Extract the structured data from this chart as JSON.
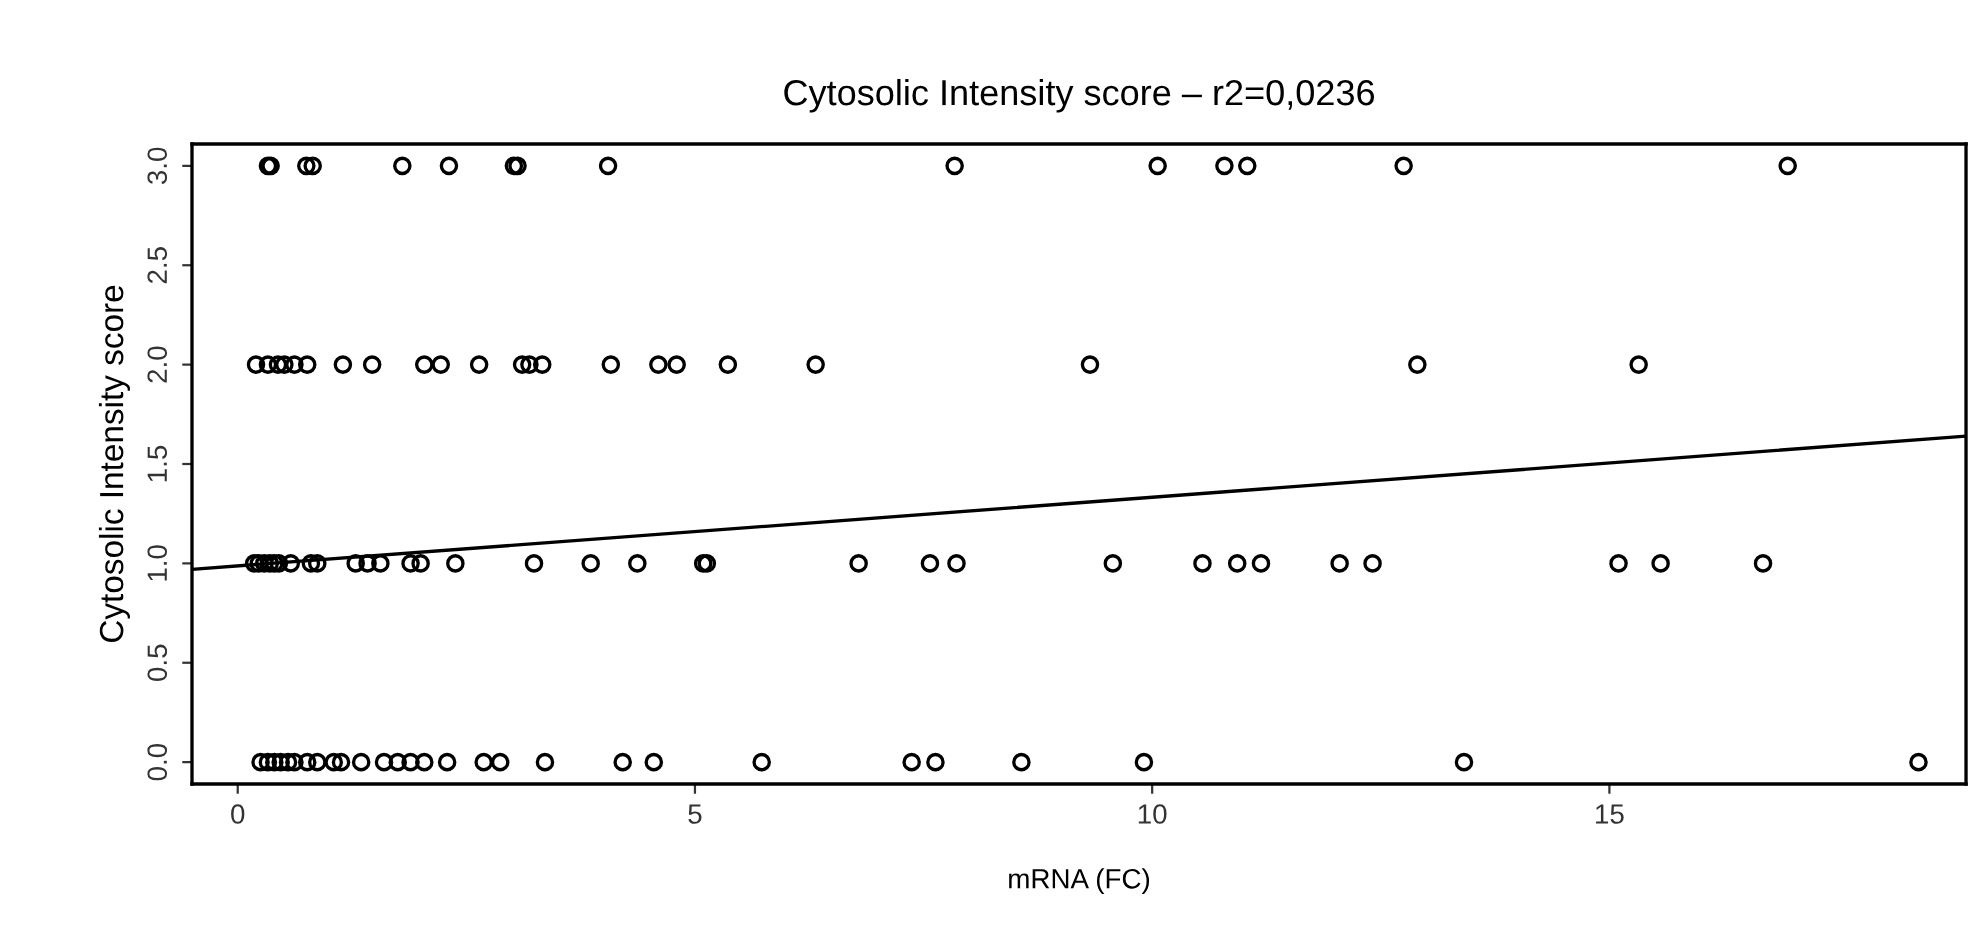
{
  "chart_data": {
    "type": "scatter",
    "title": "Cytosolic Intensity score – r2=0,0236",
    "xlabel": "mRNA (FC)",
    "ylabel": "Cytosolic Intensity score",
    "xlim": [
      -0.5,
      18.9
    ],
    "ylim": [
      -0.11,
      3.11
    ],
    "xticks": [
      0,
      5,
      10,
      15
    ],
    "yticks": [
      {
        "value": 0,
        "label": "0.0"
      },
      {
        "value": 0.5,
        "label": "0.5"
      },
      {
        "value": 1,
        "label": "1.0"
      },
      {
        "value": 1.5,
        "label": "1.5"
      },
      {
        "value": 2,
        "label": "2.0"
      },
      {
        "value": 2.5,
        "label": "2.5"
      },
      {
        "value": 3,
        "label": "3.0"
      }
    ],
    "grid": false,
    "legend": false,
    "marker": "circle",
    "series": [
      {
        "color": "#000000",
        "x": [
          0.33,
          0.36,
          0.75,
          0.82,
          1.8,
          2.31,
          3.02,
          3.06,
          4.05,
          7.84,
          10.06,
          10.79,
          11.04,
          12.75,
          16.95,
          0.2,
          0.33,
          0.44,
          0.51,
          0.62,
          0.76,
          1.15,
          1.47,
          2.04,
          2.22,
          2.64,
          3.11,
          3.19,
          3.33,
          4.08,
          4.6,
          4.8,
          5.36,
          6.32,
          9.32,
          12.9,
          15.32,
          0.18,
          0.23,
          0.29,
          0.35,
          0.4,
          0.45,
          0.58,
          0.8,
          0.87,
          1.29,
          1.42,
          1.56,
          1.89,
          2.0,
          2.38,
          3.24,
          3.86,
          4.37,
          5.09,
          5.13,
          6.79,
          7.57,
          7.86,
          9.57,
          10.55,
          10.93,
          11.19,
          12.05,
          12.41,
          15.1,
          15.56,
          16.68,
          0.25,
          0.33,
          0.4,
          0.47,
          0.55,
          0.62,
          0.76,
          0.87,
          1.05,
          1.13,
          1.35,
          1.6,
          1.75,
          1.89,
          2.04,
          2.29,
          2.69,
          2.87,
          3.36,
          4.21,
          4.55,
          5.73,
          7.37,
          7.63,
          8.57,
          9.91,
          13.41,
          18.38
        ],
        "values": [
          3,
          3,
          3,
          3,
          3,
          3,
          3,
          3,
          3,
          3,
          3,
          3,
          3,
          3,
          3,
          2,
          2,
          2,
          2,
          2,
          2,
          2,
          2,
          2,
          2,
          2,
          2,
          2,
          2,
          2,
          2,
          2,
          2,
          2,
          2,
          2,
          2,
          1,
          1,
          1,
          1,
          1,
          1,
          1,
          1,
          1,
          1,
          1,
          1,
          1,
          1,
          1,
          1,
          1,
          1,
          1,
          1,
          1,
          1,
          1,
          1,
          1,
          1,
          1,
          1,
          1,
          1,
          1,
          1,
          0,
          0,
          0,
          0,
          0,
          0,
          0,
          0,
          0,
          0,
          0,
          0,
          0,
          0,
          0,
          0,
          0,
          0,
          0,
          0,
          0,
          0,
          0,
          0,
          0,
          0,
          0,
          0
        ]
      },
      {
        "type": "line",
        "color": "#000000",
        "marker": "none",
        "x": [
          -0.5,
          18.9
        ],
        "values": [
          0.97,
          1.64
        ]
      }
    ]
  }
}
